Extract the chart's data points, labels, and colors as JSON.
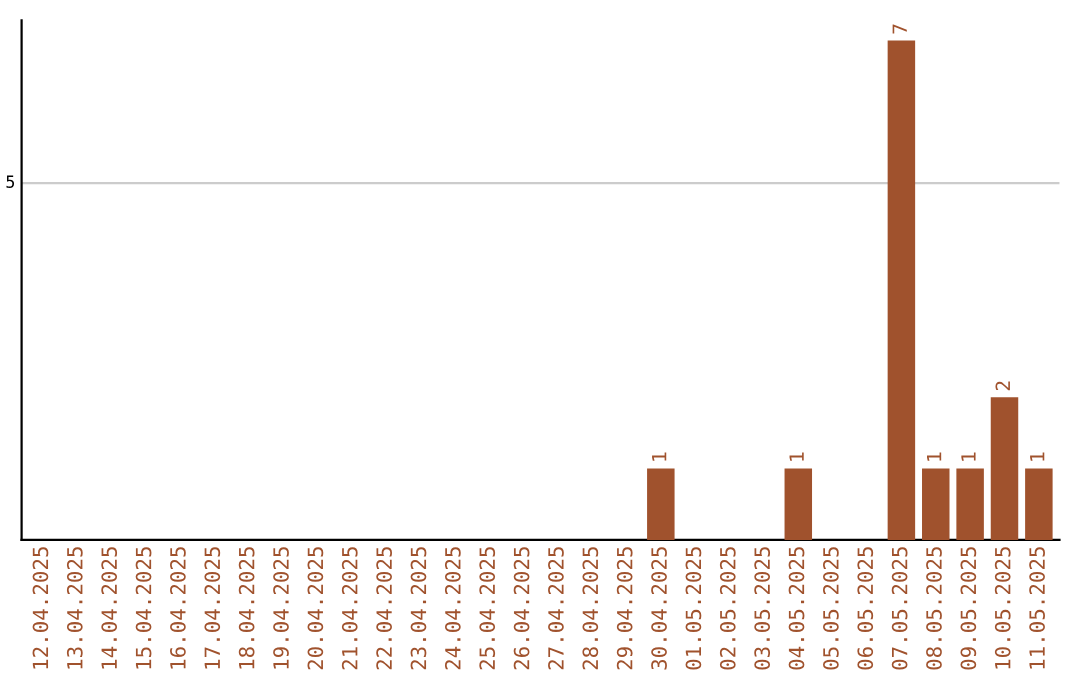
{
  "chart_data": {
    "type": "bar",
    "categories": [
      "12.04.2025",
      "13.04.2025",
      "14.04.2025",
      "15.04.2025",
      "16.04.2025",
      "17.04.2025",
      "18.04.2025",
      "19.04.2025",
      "20.04.2025",
      "21.04.2025",
      "22.04.2025",
      "23.04.2025",
      "24.04.2025",
      "25.04.2025",
      "26.04.2025",
      "27.04.2025",
      "28.04.2025",
      "29.04.2025",
      "30.04.2025",
      "01.05.2025",
      "02.05.2025",
      "03.05.2025",
      "04.05.2025",
      "05.05.2025",
      "06.05.2025",
      "07.05.2025",
      "08.05.2025",
      "09.05.2025",
      "10.05.2025",
      "11.05.2025"
    ],
    "values": [
      null,
      null,
      null,
      null,
      null,
      null,
      null,
      null,
      null,
      null,
      null,
      null,
      null,
      null,
      null,
      null,
      null,
      null,
      1,
      null,
      null,
      null,
      1,
      null,
      null,
      7,
      1,
      1,
      2,
      1
    ],
    "data_labels": true,
    "color": "#a0522d",
    "ref_lines": [
      {
        "axis": "y",
        "value": 5,
        "label": "5",
        "color": "#cccccc"
      }
    ]
  }
}
